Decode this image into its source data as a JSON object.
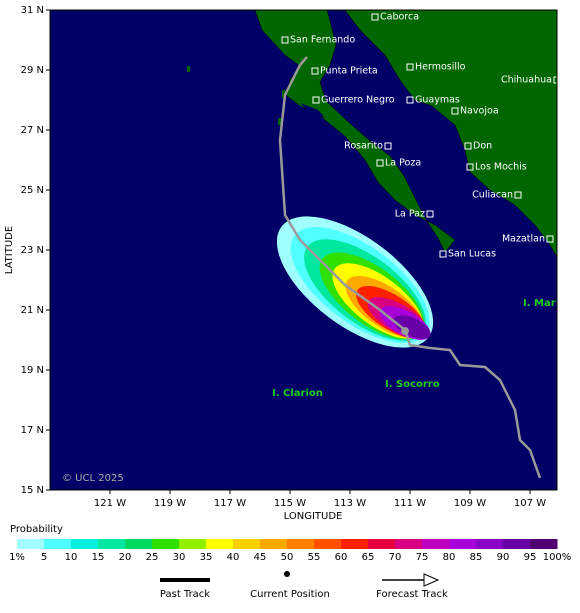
{
  "map": {
    "xlabel": "LONGITUDE",
    "ylabel": "LATITUDE",
    "xlim": [
      -123,
      -106.1
    ],
    "ylim": [
      15,
      31
    ],
    "xticks": [
      {
        "value": -121,
        "label": "121 W"
      },
      {
        "value": -119,
        "label": "119 W"
      },
      {
        "value": -117,
        "label": "117 W"
      },
      {
        "value": -115,
        "label": "115 W"
      },
      {
        "value": -113,
        "label": "113 W"
      },
      {
        "value": -111,
        "label": "111 W"
      },
      {
        "value": -109,
        "label": "109 W"
      },
      {
        "value": -107,
        "label": "107 W"
      }
    ],
    "yticks": [
      {
        "value": 31,
        "label": "31 N"
      },
      {
        "value": 29,
        "label": "29 N"
      },
      {
        "value": 27,
        "label": "27 N"
      },
      {
        "value": 25,
        "label": "25 N"
      },
      {
        "value": 23,
        "label": "23 N"
      },
      {
        "value": 21,
        "label": "21 N"
      },
      {
        "value": 19,
        "label": "19 N"
      },
      {
        "value": 17,
        "label": "17 N"
      },
      {
        "value": 15,
        "label": "15 N"
      }
    ],
    "places": [
      "Caborca",
      "San Fernando",
      "Hermosillo",
      "Punta Prieta",
      "Chihuahua",
      "Guerrero Negro",
      "Guaymas",
      "Navojoa",
      "Rosarito",
      "Don",
      "La Poza",
      "Los Mochis",
      "Culiacan",
      "La Paz",
      "Mazatlan",
      "San Lucas"
    ],
    "islands": [
      "I. Maria",
      "I. Socorro",
      "I. Clarion"
    ],
    "copyright": "© UCL 2025"
  },
  "legend": {
    "title": "Probability",
    "labels": [
      "1%",
      "5",
      "10",
      "15",
      "20",
      "25",
      "30",
      "35",
      "40",
      "45",
      "50",
      "55",
      "60",
      "65",
      "70",
      "75",
      "80",
      "85",
      "90",
      "95",
      "100%"
    ],
    "colors": [
      "#a0ffff",
      "#50ffff",
      "#00f0e0",
      "#00e8a0",
      "#00d860",
      "#30e000",
      "#90f000",
      "#ffff00",
      "#ffd000",
      "#ffa800",
      "#ff8000",
      "#ff5000",
      "#ff2000",
      "#e80040",
      "#d80080",
      "#c000c0",
      "#a800d8",
      "#8800c8",
      "#6800a8",
      "#500070"
    ],
    "track_labels": [
      "Past Track",
      "Current Position",
      "Forecast Track"
    ]
  }
}
